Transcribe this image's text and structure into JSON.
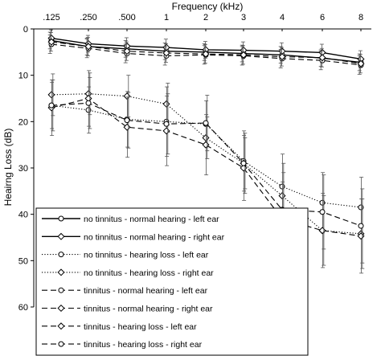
{
  "chart_data": {
    "type": "line",
    "xlabel": "Frequency (kHz)",
    "ylabel": "Heairng Loss (dB)",
    "x_ticks": [
      ".125",
      ".250",
      ".500",
      "1",
      "2",
      "3",
      "4",
      "6",
      "8"
    ],
    "ylim": [
      0,
      60
    ],
    "y_ticks": [
      0,
      10,
      20,
      30,
      40,
      50,
      60
    ],
    "y_inverted": true,
    "x_axis_position": "top",
    "legend_position": "bottom-left",
    "grid": false,
    "series": [
      {
        "name": "no tinnitus - normal hearing - left ear",
        "line": "solid",
        "marker": "circle",
        "values": [
          2.5,
          3.8,
          4.3,
          4.8,
          5.0,
          5.3,
          5.6,
          6.3,
          7.2
        ],
        "errors": [
          1.8,
          1.8,
          1.8,
          1.8,
          1.8,
          1.8,
          1.8,
          1.8,
          1.8
        ]
      },
      {
        "name": "no tinnitus - normal hearing - right ear",
        "line": "solid",
        "marker": "diamond",
        "values": [
          2.0,
          3.2,
          3.7,
          4.0,
          4.5,
          4.6,
          4.8,
          5.1,
          6.5
        ],
        "errors": [
          1.8,
          1.8,
          1.8,
          1.8,
          1.8,
          1.8,
          1.8,
          1.8,
          1.8
        ]
      },
      {
        "name": "no tinnitus - hearing loss - left ear",
        "line": "dotted",
        "marker": "circle",
        "values": [
          16.5,
          17.5,
          19.5,
          20.0,
          20.5,
          28.5,
          34.0,
          37.5,
          38.5
        ],
        "errors": [
          5.0,
          5.0,
          6.0,
          7.5,
          5.0,
          6.5,
          7.0,
          6.5,
          6.5
        ]
      },
      {
        "name": "no tinnitus - hearing loss - right ear",
        "line": "dotted",
        "marker": "diamond",
        "values": [
          14.2,
          14.0,
          14.5,
          16.2,
          23.5,
          29.0,
          36.0,
          43.5,
          44.2
        ],
        "errors": [
          4.5,
          4.5,
          4.5,
          4.5,
          4.5,
          5.5,
          7.0,
          7.5,
          7.5
        ]
      },
      {
        "name": "tinnitus - normal hearing - left ear",
        "line": "dashed",
        "marker": "circle",
        "values": [
          3.3,
          4.2,
          5.3,
          5.8,
          5.6,
          5.8,
          6.4,
          6.8,
          7.8
        ],
        "errors": [
          2.0,
          2.0,
          2.0,
          2.0,
          2.0,
          2.0,
          2.0,
          2.0,
          2.0
        ]
      },
      {
        "name": "tinnitus - normal hearing - right ear",
        "line": "dashed",
        "marker": "diamond",
        "values": [
          2.8,
          3.8,
          4.8,
          5.2,
          5.4,
          5.6,
          6.0,
          6.2,
          7.5
        ],
        "errors": [
          2.0,
          2.0,
          2.0,
          2.0,
          2.0,
          2.0,
          2.0,
          2.0,
          2.0
        ]
      },
      {
        "name": "tinnitus - hearing loss - left ear",
        "line": "dashed",
        "marker": "diamond",
        "values": [
          17.0,
          15.0,
          21.2,
          22.0,
          25.0,
          30.0,
          41.0,
          43.5,
          44.7
        ],
        "errors": [
          6.0,
          6.0,
          6.5,
          7.5,
          6.5,
          7.0,
          8.0,
          8.0,
          8.0
        ]
      },
      {
        "name": "tinnitus - hearing loss - right ear",
        "line": "dashed",
        "marker": "circle",
        "values": [
          16.5,
          16.0,
          19.7,
          20.5,
          20.3,
          29.0,
          39.0,
          39.5,
          42.5
        ],
        "errors": [
          5.5,
          5.5,
          6.0,
          6.5,
          6.0,
          6.5,
          8.0,
          8.0,
          8.0
        ]
      }
    ]
  }
}
